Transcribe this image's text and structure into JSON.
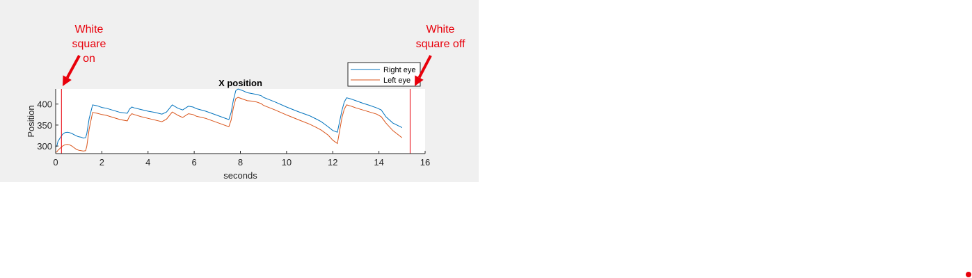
{
  "annotations": {
    "on_label": "White\nsquare on",
    "off_label": "White\nsquare off",
    "color": "#e8000b"
  },
  "slide_dot_color": "#e8000b",
  "chart_data": {
    "type": "line",
    "title": "X position",
    "xlabel": "seconds",
    "ylabel": "Position",
    "xlim": [
      0,
      16
    ],
    "ylim": [
      282,
      436
    ],
    "xticks": [
      0,
      2,
      4,
      6,
      8,
      10,
      12,
      14,
      16
    ],
    "yticks": [
      300,
      350,
      400
    ],
    "grid": false,
    "legend_position": "top-right, outside above plot",
    "event_lines": [
      {
        "x": 0.25,
        "color": "#e8000b",
        "label": "White square on"
      },
      {
        "x": 15.35,
        "color": "#e8000b",
        "label": "White square off"
      }
    ],
    "series": [
      {
        "name": "Right eye",
        "color": "#0072bd",
        "x": [
          0.0,
          0.05,
          0.1,
          0.2,
          0.3,
          0.4,
          0.5,
          0.6,
          0.7,
          0.8,
          0.9,
          1.0,
          1.1,
          1.2,
          1.3,
          1.35,
          1.45,
          1.6,
          1.8,
          2.0,
          2.2,
          2.5,
          2.8,
          3.1,
          3.2,
          3.3,
          3.4,
          3.7,
          4.0,
          4.3,
          4.6,
          4.8,
          5.05,
          5.3,
          5.5,
          5.75,
          5.95,
          6.1,
          6.5,
          7.0,
          7.5,
          7.6,
          7.7,
          7.8,
          7.9,
          8.1,
          8.3,
          8.5,
          8.7,
          8.9,
          9.0,
          9.5,
          10.0,
          10.5,
          11.0,
          11.3,
          11.5,
          11.8,
          12.0,
          12.2,
          12.4,
          12.5,
          12.6,
          12.8,
          13.0,
          13.3,
          13.6,
          13.9,
          14.1,
          14.3,
          14.6,
          15.0
        ],
        "values": [
          298,
          300,
          311,
          320,
          328,
          332,
          333,
          332,
          330,
          327,
          324,
          322,
          321,
          319,
          320,
          330,
          365,
          398,
          396,
          392,
          390,
          385,
          380,
          378,
          388,
          393,
          391,
          387,
          383,
          380,
          376,
          381,
          398,
          390,
          386,
          395,
          393,
          389,
          383,
          373,
          363,
          380,
          410,
          432,
          436,
          432,
          427,
          425,
          423,
          420,
          416,
          405,
          393,
          382,
          372,
          364,
          358,
          346,
          337,
          333,
          385,
          405,
          415,
          412,
          408,
          402,
          397,
          391,
          386,
          370,
          355,
          344
        ]
      },
      {
        "name": "Left eye",
        "color": "#d95319",
        "x": [
          0.0,
          0.05,
          0.1,
          0.2,
          0.3,
          0.4,
          0.5,
          0.6,
          0.7,
          0.8,
          0.9,
          1.0,
          1.1,
          1.2,
          1.3,
          1.35,
          1.45,
          1.6,
          1.8,
          2.0,
          2.2,
          2.5,
          2.8,
          3.1,
          3.2,
          3.3,
          3.4,
          3.7,
          4.0,
          4.3,
          4.6,
          4.8,
          5.05,
          5.3,
          5.5,
          5.75,
          5.95,
          6.1,
          6.5,
          7.0,
          7.5,
          7.6,
          7.7,
          7.8,
          7.9,
          8.1,
          8.3,
          8.5,
          8.7,
          8.9,
          9.0,
          9.5,
          10.0,
          10.5,
          11.0,
          11.3,
          11.5,
          11.8,
          12.0,
          12.2,
          12.4,
          12.5,
          12.6,
          12.8,
          13.0,
          13.3,
          13.6,
          13.9,
          14.1,
          14.3,
          14.6,
          15.0
        ],
        "values": [
          285,
          286,
          290,
          295,
          300,
          303,
          304,
          303,
          300,
          296,
          292,
          290,
          289,
          288,
          289,
          300,
          340,
          380,
          378,
          375,
          373,
          368,
          363,
          360,
          371,
          377,
          375,
          370,
          366,
          362,
          358,
          364,
          381,
          373,
          368,
          377,
          375,
          371,
          366,
          356,
          346,
          362,
          392,
          413,
          416,
          412,
          408,
          407,
          405,
          401,
          397,
          386,
          374,
          363,
          352,
          344,
          338,
          326,
          314,
          306,
          368,
          388,
          398,
          395,
          391,
          386,
          381,
          376,
          370,
          355,
          337,
          320
        ]
      }
    ]
  }
}
